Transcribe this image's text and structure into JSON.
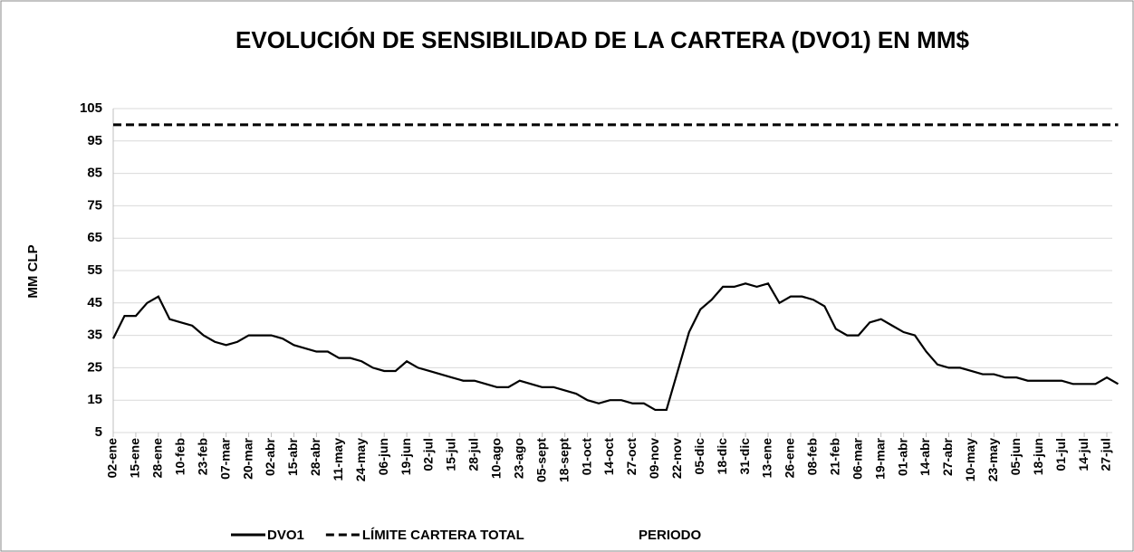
{
  "chart_data": {
    "type": "line",
    "title": "EVOLUCIÓN DE SENSIBILIDAD DE LA CARTERA (DVO1) EN MM$",
    "y_label": "MM CLP",
    "x_label": "PERIODO",
    "legend": "bottom",
    "grid": true,
    "ylim": [
      5,
      105
    ],
    "yticks": [
      5,
      15,
      25,
      35,
      45,
      55,
      65,
      75,
      85,
      95,
      105
    ],
    "categories": [
      "02-ene",
      null,
      "15-ene",
      null,
      "28-ene",
      null,
      "10-feb",
      null,
      "23-feb",
      null,
      "07-mar",
      null,
      "20-mar",
      null,
      "02-abr",
      null,
      "15-abr",
      null,
      "28-abr",
      null,
      "11-may",
      null,
      "24-may",
      null,
      "06-jun",
      null,
      "19-jun",
      null,
      "02-jul",
      null,
      "15-jul",
      null,
      "28-jul",
      null,
      "10-ago",
      null,
      "23-ago",
      null,
      "05-sept",
      null,
      "18-sept",
      null,
      "01-oct",
      null,
      "14-oct",
      null,
      "27-oct",
      null,
      "09-nov",
      null,
      "22-nov",
      null,
      "05-dic",
      null,
      "18-dic",
      null,
      "31-dic",
      null,
      "13-ene",
      null,
      "26-ene",
      null,
      "08-feb",
      null,
      "21-feb",
      null,
      "06-mar",
      null,
      "19-mar",
      null,
      "01-abr",
      null,
      "14-abr",
      null,
      "27-abr",
      null,
      "10-may",
      null,
      "23-may",
      null,
      "05-jun",
      null,
      "18-jun",
      null,
      "01-jul",
      null,
      "14-jul",
      null,
      "27-jul",
      null
    ],
    "series": [
      {
        "name": "DVO1",
        "color": "#000000",
        "dash": false,
        "values": [
          34,
          41,
          41,
          45,
          47,
          40,
          39,
          38,
          35,
          33,
          32,
          33,
          35,
          35,
          35,
          34,
          32,
          31,
          30,
          30,
          28,
          28,
          27,
          25,
          24,
          24,
          27,
          25,
          24,
          23,
          22,
          21,
          21,
          20,
          19,
          19,
          21,
          20,
          19,
          19,
          18,
          17,
          15,
          14,
          15,
          15,
          14,
          14,
          12,
          12,
          24,
          36,
          43,
          46,
          50,
          50,
          51,
          50,
          51,
          45,
          47,
          47,
          46,
          44,
          37,
          35,
          35,
          39,
          40,
          38,
          36,
          35,
          30,
          26,
          25,
          25,
          24,
          23,
          23,
          22,
          22,
          21,
          21,
          21,
          21,
          20,
          20,
          20,
          22,
          20
        ]
      },
      {
        "name": "LÍMITE CARTERA TOTAL",
        "color": "#000000",
        "dash": true,
        "values": [
          100,
          100,
          100,
          100,
          100,
          100,
          100,
          100,
          100,
          100,
          100,
          100,
          100,
          100,
          100,
          100,
          100,
          100,
          100,
          100,
          100,
          100,
          100,
          100,
          100,
          100,
          100,
          100,
          100,
          100,
          100,
          100,
          100,
          100,
          100,
          100,
          100,
          100,
          100,
          100,
          100,
          100,
          100,
          100,
          100,
          100,
          100,
          100,
          100,
          100,
          100,
          100,
          100,
          100,
          100,
          100,
          100,
          100,
          100,
          100,
          100,
          100,
          100,
          100,
          100,
          100,
          100,
          100,
          100,
          100,
          100,
          100,
          100,
          100,
          100,
          100,
          100,
          100,
          100,
          100,
          100,
          100,
          100,
          100,
          100,
          100,
          100,
          100,
          100,
          100
        ]
      }
    ]
  }
}
